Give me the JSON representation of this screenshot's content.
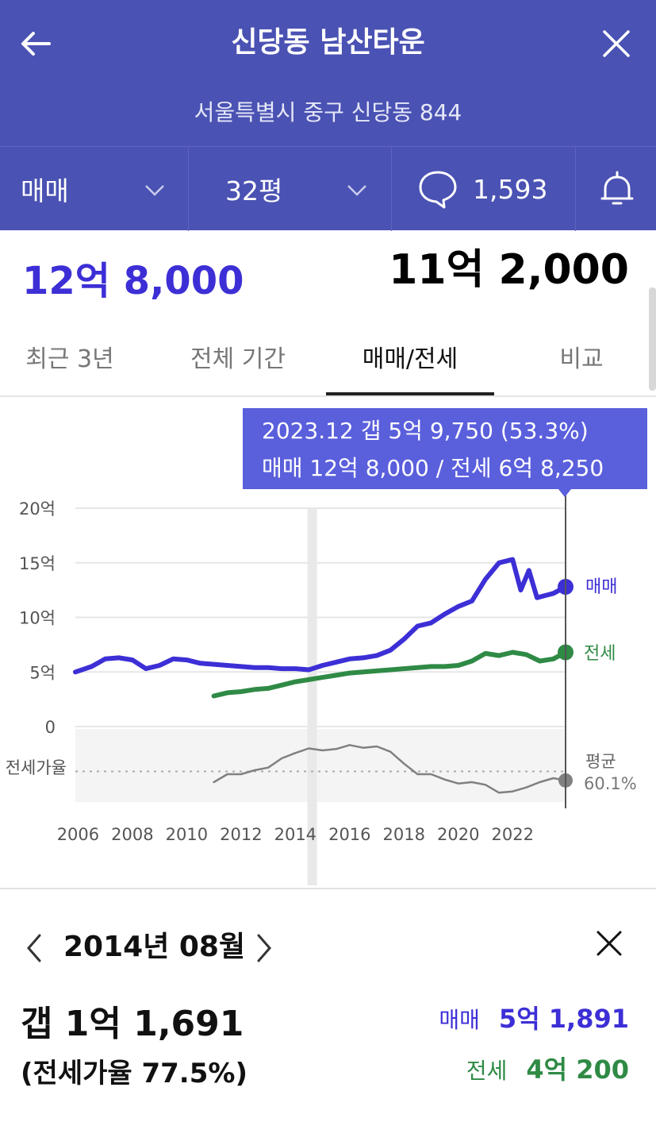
{
  "header": {
    "title": "신당동 남산타운",
    "address": "서울특별시 중구 신당동 844",
    "back_icon": "arrow-left-icon",
    "close_icon": "close-icon",
    "background": "#4a52b3"
  },
  "filters": {
    "trade_type": "매매",
    "size": "32평",
    "comment_count": "1,593",
    "comment_icon": "speech-bubble-icon",
    "alert_icon": "bell-icon"
  },
  "prices": {
    "main": "12억 8,000",
    "secondary": "11억 2,000"
  },
  "tabs": [
    {
      "label": "최근 3년",
      "active": false
    },
    {
      "label": "전체 기간",
      "active": false
    },
    {
      "label": "매매/전세",
      "active": true
    },
    {
      "label": "비교",
      "active": false
    }
  ],
  "tooltip": {
    "line1": "2023.12  갭 5억 9,750 (53.3%)",
    "line2": "매매 12억 8,000 / 전세 6억 8,250"
  },
  "chart_data": {
    "type": "line",
    "y_unit": "억",
    "ylim": [
      0,
      20
    ],
    "y_ticks": [
      "20억",
      "15억",
      "10억",
      "5억",
      "0"
    ],
    "x_ticks": [
      "2006",
      "2008",
      "2010",
      "2012",
      "2014",
      "2016",
      "2018",
      "2020",
      "2022"
    ],
    "xlim": [
      2005.9,
      2023.95
    ],
    "series": [
      {
        "name": "매매",
        "color": "#3d2fd6",
        "x": [
          2005.9,
          2006.5,
          2007.0,
          2007.5,
          2008.0,
          2008.5,
          2009.0,
          2009.5,
          2010.0,
          2010.5,
          2011.0,
          2011.5,
          2012.0,
          2012.5,
          2013.0,
          2013.5,
          2014.0,
          2014.5,
          2015.0,
          2015.5,
          2016.0,
          2016.5,
          2017.0,
          2017.5,
          2018.0,
          2018.5,
          2019.0,
          2019.5,
          2020.0,
          2020.5,
          2021.0,
          2021.5,
          2022.0,
          2022.3,
          2022.6,
          2022.9,
          2023.2,
          2023.5,
          2023.95
        ],
        "values": [
          5.0,
          5.5,
          6.2,
          6.3,
          6.1,
          5.3,
          5.6,
          6.2,
          6.1,
          5.8,
          5.7,
          5.6,
          5.5,
          5.4,
          5.4,
          5.3,
          5.3,
          5.2,
          5.6,
          5.9,
          6.2,
          6.3,
          6.5,
          7.0,
          8.0,
          9.2,
          9.5,
          10.3,
          11.0,
          11.5,
          13.5,
          15.0,
          15.3,
          12.5,
          14.3,
          11.8,
          12.0,
          12.2,
          12.8
        ]
      },
      {
        "name": "전세",
        "color": "#2f8a45",
        "x": [
          2011.0,
          2011.5,
          2012.0,
          2012.5,
          2013.0,
          2013.5,
          2014.0,
          2014.5,
          2015.0,
          2015.5,
          2016.0,
          2016.5,
          2017.0,
          2017.5,
          2018.0,
          2018.5,
          2019.0,
          2019.5,
          2020.0,
          2020.5,
          2021.0,
          2021.5,
          2022.0,
          2022.5,
          2023.0,
          2023.5,
          2023.95
        ],
        "values": [
          2.8,
          3.1,
          3.2,
          3.4,
          3.5,
          3.8,
          4.1,
          4.3,
          4.5,
          4.7,
          4.9,
          5.0,
          5.1,
          5.2,
          5.3,
          5.4,
          5.5,
          5.5,
          5.6,
          6.0,
          6.7,
          6.5,
          6.8,
          6.6,
          6.0,
          6.2,
          6.8
        ]
      },
      {
        "name": "전세가율",
        "color": "#808080",
        "x": [
          2011.0,
          2011.5,
          2012.0,
          2012.5,
          2013.0,
          2013.5,
          2014.0,
          2014.5,
          2015.0,
          2015.5,
          2016.0,
          2016.5,
          2017.0,
          2017.5,
          2018.0,
          2018.5,
          2019.0,
          2019.5,
          2020.0,
          2020.5,
          2021.0,
          2021.5,
          2022.0,
          2022.5,
          2023.0,
          2023.5,
          2023.95
        ],
        "values": [
          52,
          58,
          58,
          61,
          63,
          70,
          74,
          77.5,
          76,
          77,
          80,
          78,
          79,
          75,
          66,
          58,
          58,
          54,
          51,
          52,
          50,
          44,
          45,
          48,
          52,
          55,
          53.3
        ]
      }
    ],
    "ratio_average_label": "평균",
    "ratio_average_value": "60.1%",
    "ratio_average": 60.1,
    "ratio_label": "전세가율",
    "highlight_x": 2014.62,
    "cursor_x": 2023.95
  },
  "detail": {
    "month": "2014년 08월",
    "gap": "갭 1억 1,691",
    "ratio": "(전세가율 77.5%)",
    "sale_label": "매매",
    "sale_value": "5억 1,891",
    "jeonse_label": "전세",
    "jeonse_value": "4억 200"
  }
}
